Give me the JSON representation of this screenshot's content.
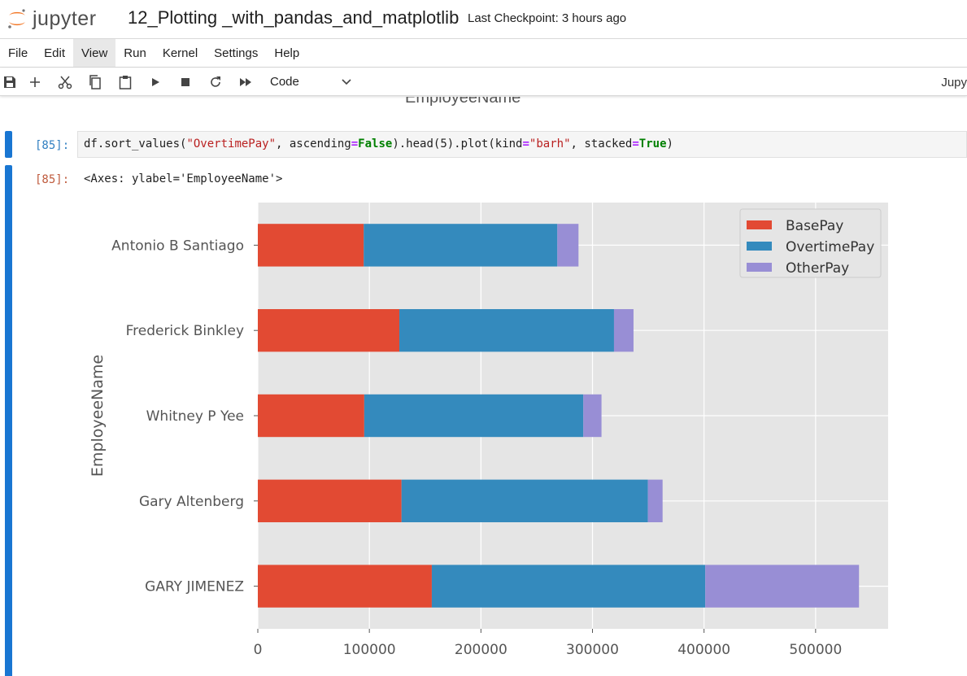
{
  "app": {
    "logo_text": "jupyter",
    "notebook_title": "12_Plotting _with_pandas_and_matplotlib",
    "checkpoint": "Last Checkpoint: 3 hours ago",
    "kernel_label": "Jupy"
  },
  "menu": [
    "File",
    "Edit",
    "View",
    "Run",
    "Kernel",
    "Settings",
    "Help"
  ],
  "menu_active": "View",
  "toolbar": {
    "icons": [
      "save-icon",
      "add-cell-icon",
      "cut-icon",
      "copy-icon",
      "paste-icon",
      "run-icon",
      "stop-icon",
      "restart-icon",
      "run-all-icon"
    ],
    "cell_type": "Code"
  },
  "previous_output_fragment": "EmployeeName",
  "cell": {
    "in_prompt": "[85]:",
    "out_prompt": "[85]:",
    "code_tokens": [
      {
        "t": "df.sort_values(",
        "c": "tok-var"
      },
      {
        "t": "\"OvertimePay\"",
        "c": "tok-str"
      },
      {
        "t": ", ascending",
        "c": "tok-var"
      },
      {
        "t": "=",
        "c": "tok-eq"
      },
      {
        "t": "False",
        "c": "tok-kw"
      },
      {
        "t": ").head(5).plot(kind",
        "c": "tok-var"
      },
      {
        "t": "=",
        "c": "tok-eq"
      },
      {
        "t": "\"barh\"",
        "c": "tok-str"
      },
      {
        "t": ", stacked",
        "c": "tok-var"
      },
      {
        "t": "=",
        "c": "tok-eq"
      },
      {
        "t": "True",
        "c": "tok-kw"
      },
      {
        "t": ")",
        "c": "tok-var"
      }
    ],
    "output_text": "<Axes: ylabel='EmployeeName'>"
  },
  "chart_data": {
    "type": "bar",
    "orientation": "horizontal",
    "stacked": true,
    "categories": [
      "GARY JIMENEZ",
      "Gary Altenberg",
      "Whitney P Yee",
      "Frederick Binkley",
      "Antonio B Santiago"
    ],
    "series": [
      {
        "name": "BasePay",
        "color": "#e24a33",
        "values": [
          155966,
          128808,
          95403,
          126863,
          94947
        ]
      },
      {
        "name": "OvertimePay",
        "color": "#348abd",
        "values": [
          245132,
          220909,
          196380,
          192425,
          173547
        ]
      },
      {
        "name": "OtherPay",
        "color": "#988ed5",
        "values": [
          137811,
          13127,
          16296,
          17489,
          18975
        ]
      }
    ],
    "xticks": [
      "0",
      "100000",
      "200000",
      "300000",
      "400000",
      "500000"
    ],
    "xlim": [
      0,
      565000
    ],
    "ylabel": "EmployeeName",
    "xlabel": "",
    "grid": true,
    "legend_position": "top-right",
    "style": "ggplot"
  }
}
